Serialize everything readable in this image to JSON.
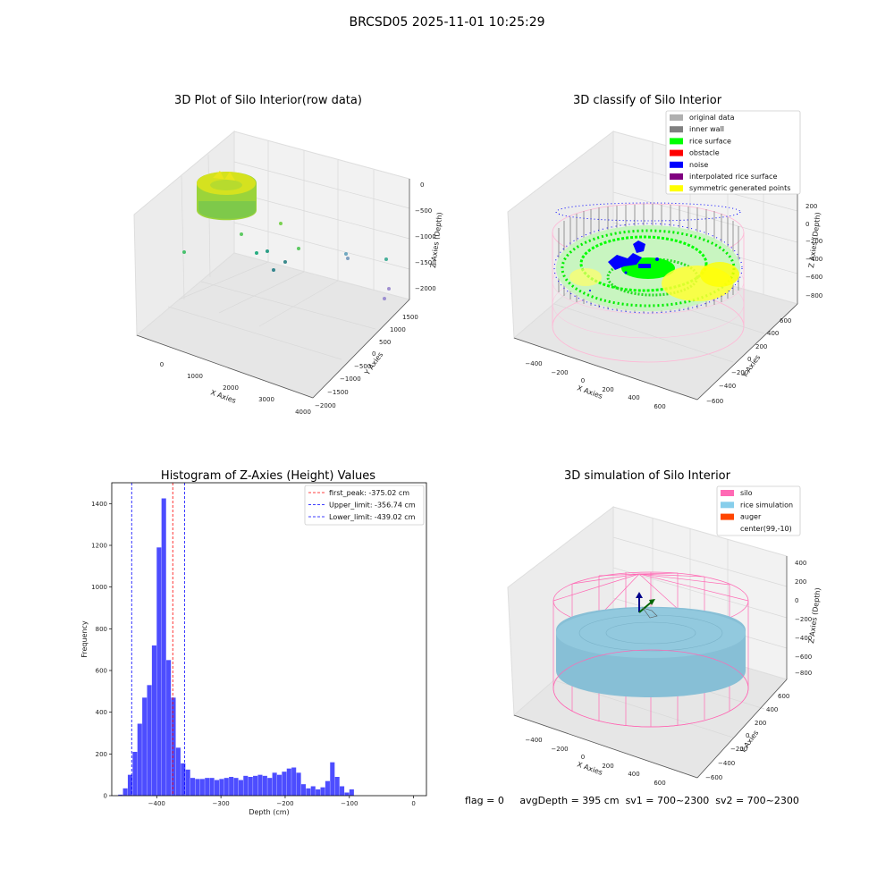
{
  "suptitle": "BRCSD05 2025-11-01 10:25:29",
  "status": {
    "flag": "flag = 0",
    "avg_depth": "avgDepth = 395 cm",
    "sv1": "sv1 = 700~2300",
    "sv2": "sv2 = 700~2300"
  },
  "colors": {
    "hist_bar": "#4d4dff",
    "first_peak_line": "#ff0000",
    "limit_line": "#0000ff",
    "pane": "#f2f2f2"
  },
  "chart_data": [
    {
      "type": "scatter",
      "title": "3D Plot of Silo Interior(row data)",
      "xlabel": "X Axies",
      "ylabel": "Y Axies",
      "zlabel": "Z Axies (Depth)",
      "x_ticks": [
        "0",
        "1000",
        "2000",
        "3000",
        "4000"
      ],
      "y_ticks": [
        "1500",
        "1000",
        "500",
        "0",
        "−500",
        "−1000",
        "−1500",
        "−2000"
      ],
      "z_ticks": [
        "0",
        "−500",
        "−1000",
        "−1500",
        "−2000"
      ],
      "colormap": [
        "#22aa88",
        "#7ad151",
        "#fde725"
      ]
    },
    {
      "type": "scatter",
      "title": "3D classify of Silo Interior",
      "xlabel": "X Axies",
      "ylabel": "Y Axies",
      "zlabel": "Z Axies (Depth)",
      "x_ticks": [
        "−400",
        "−200",
        "0",
        "200",
        "400",
        "600"
      ],
      "y_ticks": [
        "600",
        "400",
        "200",
        "0",
        "−200",
        "−400",
        "−600"
      ],
      "z_ticks": [
        "200",
        "0",
        "−200",
        "−400",
        "−600",
        "−800"
      ],
      "z_ticks_top_partial": "00",
      "legend": [
        {
          "label": "original data",
          "color": "#b0b0b0"
        },
        {
          "label": "inner wall",
          "color": "#808080"
        },
        {
          "label": "rice surface",
          "color": "#00ff00"
        },
        {
          "label": "obstacle",
          "color": "#ff0000"
        },
        {
          "label": "noise",
          "color": "#0000ff"
        },
        {
          "label": "interpolated rice surface",
          "color": "#800080"
        },
        {
          "label": "symmetric generated points",
          "color": "#ffff00"
        }
      ],
      "legend_position": "top-right"
    },
    {
      "type": "bar",
      "title": "Histogram of Z-Axies (Height) Values",
      "xlabel": "Depth (cm)",
      "ylabel": "Frequency",
      "xlim": [
        -470,
        20
      ],
      "ylim": [
        0,
        1500
      ],
      "x_ticks": [
        -400,
        -300,
        -200,
        -100,
        0
      ],
      "y_ticks": [
        0,
        200,
        400,
        600,
        800,
        1000,
        1200,
        1400
      ],
      "x_tick_labels": [
        "−400",
        "−300",
        "−200",
        "−100",
        "0"
      ],
      "bin_start": -460,
      "bin_width": 7.5,
      "values": [
        5,
        35,
        100,
        210,
        345,
        470,
        530,
        720,
        1190,
        1425,
        650,
        470,
        230,
        155,
        125,
        85,
        80,
        80,
        85,
        85,
        75,
        80,
        85,
        90,
        85,
        75,
        95,
        90,
        95,
        100,
        95,
        85,
        110,
        100,
        115,
        130,
        135,
        110,
        55,
        35,
        45,
        30,
        40,
        70,
        160,
        90,
        45,
        15,
        30
      ],
      "vlines": [
        {
          "label": "first_peak: -375.02 cm",
          "x": -375.02,
          "color": "#ff0000"
        },
        {
          "label": "Upper_limit: -356.74 cm",
          "x": -356.74,
          "color": "#0000ff"
        },
        {
          "label": "Lower_limit: -439.02 cm",
          "x": -439.02,
          "color": "#0000ff"
        }
      ],
      "legend_position": "top-right"
    },
    {
      "type": "scatter",
      "title": "3D simulation of Silo Interior",
      "xlabel": "X Axies",
      "ylabel": "Y Axies",
      "zlabel": "Z Axies (Depth)",
      "x_ticks": [
        "−400",
        "−200",
        "0",
        "200",
        "400",
        "600"
      ],
      "y_ticks": [
        "600",
        "400",
        "200",
        "0",
        "−200",
        "−400",
        "−600"
      ],
      "z_ticks": [
        "400",
        "200",
        "0",
        "−200",
        "−400",
        "−600",
        "−800"
      ],
      "legend": [
        {
          "label": "silo",
          "color": "#ff69b4"
        },
        {
          "label": "rice simulation",
          "color": "#87ceeb"
        },
        {
          "label": "auger",
          "color": "#ff4500"
        },
        {
          "label": "center(99,-10)",
          "color": ""
        }
      ],
      "legend_position": "top-right"
    }
  ]
}
